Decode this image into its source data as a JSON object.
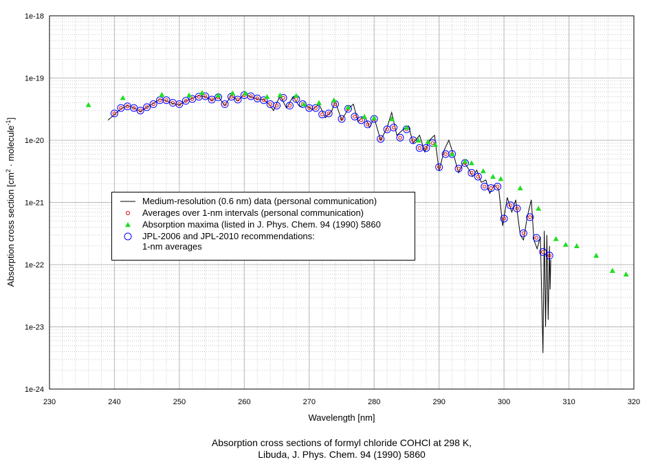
{
  "chart_data": {
    "type": "scatter",
    "title": "Absorption cross sections of formyl chloride COHCl at 298 K,\nLibuda, J. Phys. Chem. 94 (1990) 5860",
    "x_label": "Wavelength [nm]",
    "y_label": [
      "Absorption cross section [cm",
      "2",
      " · molecule",
      "-1",
      "]"
    ],
    "xlim": [
      230,
      320
    ],
    "xticks": [
      230,
      240,
      250,
      260,
      270,
      280,
      290,
      300,
      310,
      320
    ],
    "ylim": [
      1e-24,
      1e-18
    ],
    "yticks": [
      1e-24,
      1e-23,
      1e-22,
      1e-21,
      1e-20,
      1e-19,
      1e-18
    ],
    "log_y": true,
    "grid": true,
    "legend": "center-left",
    "series": [
      {
        "name": "Medium-resolution (0.6 nm) data (personal communication)",
        "color": "#000000",
        "marker": "line",
        "x": [
          239,
          240,
          241,
          242,
          243,
          244,
          245,
          246,
          247,
          248,
          249,
          250,
          251,
          252,
          253,
          254,
          255,
          256,
          257,
          258,
          259,
          260,
          261,
          262,
          263,
          264,
          264.5,
          265.5,
          266.5,
          267.5,
          268.5,
          269.5,
          270.5,
          271.5,
          272.5,
          273.5,
          274,
          275,
          276,
          276.8,
          277.5,
          278.5,
          279.3,
          280,
          281,
          282,
          282.7,
          283.5,
          284.5,
          285.3,
          286,
          287,
          287.8,
          288.5,
          289.3,
          290,
          290.8,
          291.5,
          292.3,
          293,
          293.8,
          294.5,
          295.2,
          295.8,
          296.5,
          297.2,
          297.8,
          298.5,
          299.2,
          299.8,
          300.5,
          301.2,
          301.8,
          302.5,
          303,
          303.6,
          304.2,
          304.6,
          305.1,
          305.6,
          306,
          306.2,
          306.4,
          306.6,
          306.8,
          307,
          307.1,
          307.2
        ],
        "values": [
          2.1e-20,
          2.6e-20,
          3.2e-20,
          3.6e-20,
          3.3e-20,
          2.9e-20,
          3.4e-20,
          3.9e-20,
          4.6e-20,
          4.3e-20,
          3.9e-20,
          3.7e-20,
          4.3e-20,
          4.7e-20,
          5.2e-20,
          5e-20,
          4.4e-20,
          5e-20,
          3.6e-20,
          5.3e-20,
          4.3e-20,
          5.5e-20,
          5e-20,
          4.6e-20,
          4.5e-20,
          3.6e-20,
          3e-20,
          5.2e-20,
          3.3e-20,
          5e-20,
          3.5e-20,
          3.6e-20,
          3.1e-20,
          3.8e-20,
          2.3e-20,
          3e-20,
          4.2e-20,
          2.1e-20,
          3.2e-20,
          3.8e-20,
          2e-20,
          2.5e-20,
          1.6e-20,
          2.3e-20,
          1e-20,
          1.6e-20,
          2.8e-20,
          1.2e-20,
          1.5e-20,
          1.7e-20,
          9e-21,
          1.2e-20,
          6.5e-21,
          1e-20,
          1.2e-20,
          3.2e-21,
          7e-21,
          1e-20,
          5.5e-21,
          3e-21,
          4.5e-21,
          3.5e-21,
          2.6e-21,
          3.3e-21,
          2.1e-21,
          2.3e-21,
          1.4e-21,
          1.9e-21,
          1.6e-21,
          4.2e-22,
          1.2e-21,
          7e-22,
          1.1e-21,
          3e-22,
          2.5e-22,
          6e-22,
          1.1e-21,
          2.5e-22,
          1.8e-22,
          2.8e-22,
          3.8e-24,
          3.5e-22,
          1e-23,
          3e-22,
          1.3e-23,
          2e-22,
          4e-23,
          1.2e-22
        ]
      },
      {
        "name": "JPL-2006 and JPL-2010 recommendations:\n1-nm averages",
        "color": "#0000ff",
        "marker": "circle",
        "x": [
          240,
          241,
          242,
          243,
          244,
          245,
          246,
          247,
          248,
          249,
          250,
          251,
          252,
          253,
          254,
          255,
          256,
          257,
          258,
          259,
          260,
          261,
          262,
          263,
          264,
          265,
          266,
          267,
          268,
          269,
          270,
          271,
          272,
          273,
          274,
          275,
          276,
          277,
          278,
          279,
          280,
          281,
          282,
          283,
          284,
          285,
          286,
          287,
          288,
          289,
          290,
          291,
          292,
          293,
          294,
          295,
          296,
          297,
          298,
          299,
          300,
          301,
          302,
          303,
          304,
          305,
          306,
          307
        ],
        "values": [
          2.7e-20,
          3.3e-20,
          3.5e-20,
          3.3e-20,
          3e-20,
          3.4e-20,
          3.8e-20,
          4.4e-20,
          4.4e-20,
          4e-20,
          3.8e-20,
          4.3e-20,
          4.6e-20,
          5e-20,
          5.1e-20,
          4.5e-20,
          4.9e-20,
          3.8e-20,
          5e-20,
          4.5e-20,
          5.3e-20,
          5.1e-20,
          4.7e-20,
          4.4e-20,
          3.8e-20,
          3.6e-20,
          4.8e-20,
          3.6e-20,
          4.6e-20,
          3.8e-20,
          3.3e-20,
          3.3e-20,
          2.6e-20,
          2.7e-20,
          3.8e-20,
          2.2e-20,
          3.2e-20,
          2.4e-20,
          2.1e-20,
          1.8e-20,
          2.2e-20,
          1.05e-20,
          1.5e-20,
          1.6e-20,
          1.1e-20,
          1.5e-20,
          1e-20,
          7.5e-21,
          7.5e-21,
          9e-21,
          3.7e-21,
          6e-21,
          6e-21,
          3.5e-21,
          4.3e-21,
          3e-21,
          2.6e-21,
          1.8e-21,
          1.7e-21,
          1.8e-21,
          5.5e-22,
          9e-22,
          8e-22,
          3.2e-22,
          5.8e-22,
          2.7e-22,
          1.6e-22,
          1.4e-22
        ]
      },
      {
        "name": "Averages over 1-nm intervals (personal communication)",
        "color": "#e03030",
        "marker": "small-circle",
        "x": [
          240,
          241,
          242,
          243,
          244,
          245,
          246,
          247,
          248,
          249,
          250,
          251,
          252,
          253,
          254,
          255,
          256,
          257,
          258,
          259,
          260,
          261,
          262,
          263,
          264,
          265,
          266,
          267,
          268,
          269,
          270,
          271,
          272,
          273,
          274,
          275,
          276,
          277,
          278,
          279,
          280,
          281,
          282,
          283,
          284,
          285,
          286,
          287,
          288,
          289,
          290,
          291,
          292,
          293,
          294,
          295,
          296,
          297,
          298,
          299,
          300,
          301,
          302,
          303,
          304,
          305,
          306,
          307
        ],
        "values": [
          2.7e-20,
          3.3e-20,
          3.5e-20,
          3.3e-20,
          3e-20,
          3.4e-20,
          3.8e-20,
          4.4e-20,
          4.4e-20,
          4e-20,
          3.8e-20,
          4.3e-20,
          4.6e-20,
          5e-20,
          5.1e-20,
          4.5e-20,
          4.9e-20,
          3.8e-20,
          5e-20,
          4.5e-20,
          5.3e-20,
          5.1e-20,
          4.7e-20,
          4.4e-20,
          3.8e-20,
          3.6e-20,
          4.8e-20,
          3.6e-20,
          4.6e-20,
          3.8e-20,
          3.3e-20,
          3.3e-20,
          2.6e-20,
          2.7e-20,
          3.8e-20,
          2.2e-20,
          3.2e-20,
          2.4e-20,
          2.1e-20,
          1.8e-20,
          2.2e-20,
          1.05e-20,
          1.5e-20,
          1.6e-20,
          1.1e-20,
          1.5e-20,
          1e-20,
          7.5e-21,
          7.5e-21,
          9e-21,
          3.7e-21,
          6e-21,
          6e-21,
          3.5e-21,
          4.3e-21,
          3e-21,
          2.6e-21,
          1.8e-21,
          1.7e-21,
          1.8e-21,
          5.5e-22,
          9e-22,
          8e-22,
          3.2e-22,
          5.8e-22,
          2.7e-22,
          1.6e-22,
          1.4e-22
        ]
      },
      {
        "name": "Absorption maxima (listed in J. Phys. Chem. 94 (1990) 5860",
        "color": "#22dd22",
        "marker": "triangle",
        "x": [
          236,
          241.3,
          247.3,
          251.5,
          253.5,
          256,
          258.2,
          260.2,
          263.5,
          265.5,
          268,
          269.2,
          271.5,
          273.8,
          276,
          278.5,
          280,
          282.7,
          285,
          286.8,
          288.3,
          289.4,
          292,
          294,
          295,
          296.8,
          298.3,
          299.5,
          302.5,
          305.3,
          308,
          309.5,
          311.2,
          314.2,
          316.7,
          318.8
        ],
        "values": [
          3.7e-20,
          4.8e-20,
          5.4e-20,
          5.3e-20,
          5.8e-20,
          5.3e-20,
          5.7e-20,
          5.7e-20,
          5e-20,
          5.3e-20,
          5.2e-20,
          3.8e-20,
          4e-20,
          4.4e-20,
          3.4e-20,
          2.4e-20,
          2.3e-20,
          2.2e-20,
          1.6e-20,
          1e-20,
          9.5e-21,
          8.5e-21,
          6e-21,
          4.6e-21,
          4.3e-21,
          3.2e-21,
          2.6e-21,
          2.4e-21,
          1.7e-21,
          8e-22,
          2.6e-22,
          2.1e-22,
          2e-22,
          1.4e-22,
          8e-23,
          7e-23
        ]
      }
    ],
    "legend_order": [
      0,
      2,
      3,
      1
    ]
  }
}
